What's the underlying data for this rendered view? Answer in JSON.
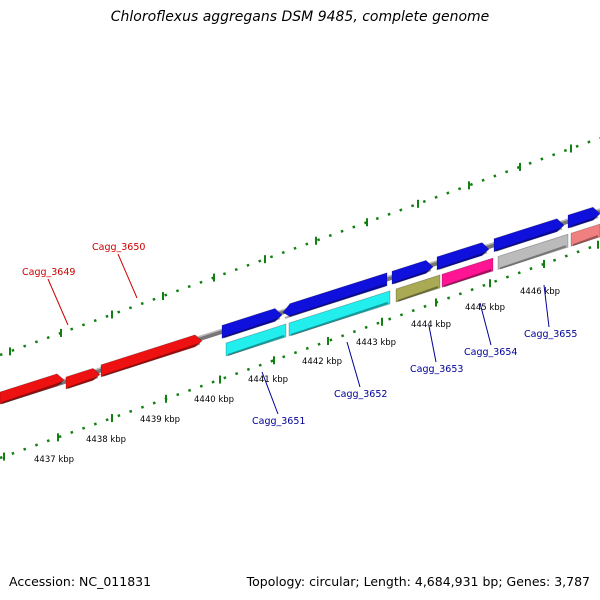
{
  "title": "Chloroflexus aggregans DSM 9485, complete genome",
  "footer": {
    "accession": "Accession: NC_011831",
    "summary": "Topology: circular; Length: 4,684,931 bp; Genes: 3,787"
  },
  "ticks": [
    "4437 kbp",
    "4438 kbp",
    "4439 kbp",
    "4440 kbp",
    "4441 kbp",
    "4442 kbp",
    "4443 kbp",
    "4444 kbp",
    "4445 kbp",
    "4446 kbp"
  ],
  "gene_labels": [
    {
      "name": "Cagg_3649",
      "color": "#cc0000"
    },
    {
      "name": "Cagg_3650",
      "color": "#cc0000"
    },
    {
      "name": "Cagg_3651",
      "color": "#000099"
    },
    {
      "name": "Cagg_3652",
      "color": "#000099"
    },
    {
      "name": "Cagg_3653",
      "color": "#000099"
    },
    {
      "name": "Cagg_3654",
      "color": "#000099"
    },
    {
      "name": "Cagg_3655",
      "color": "#000099"
    }
  ]
}
